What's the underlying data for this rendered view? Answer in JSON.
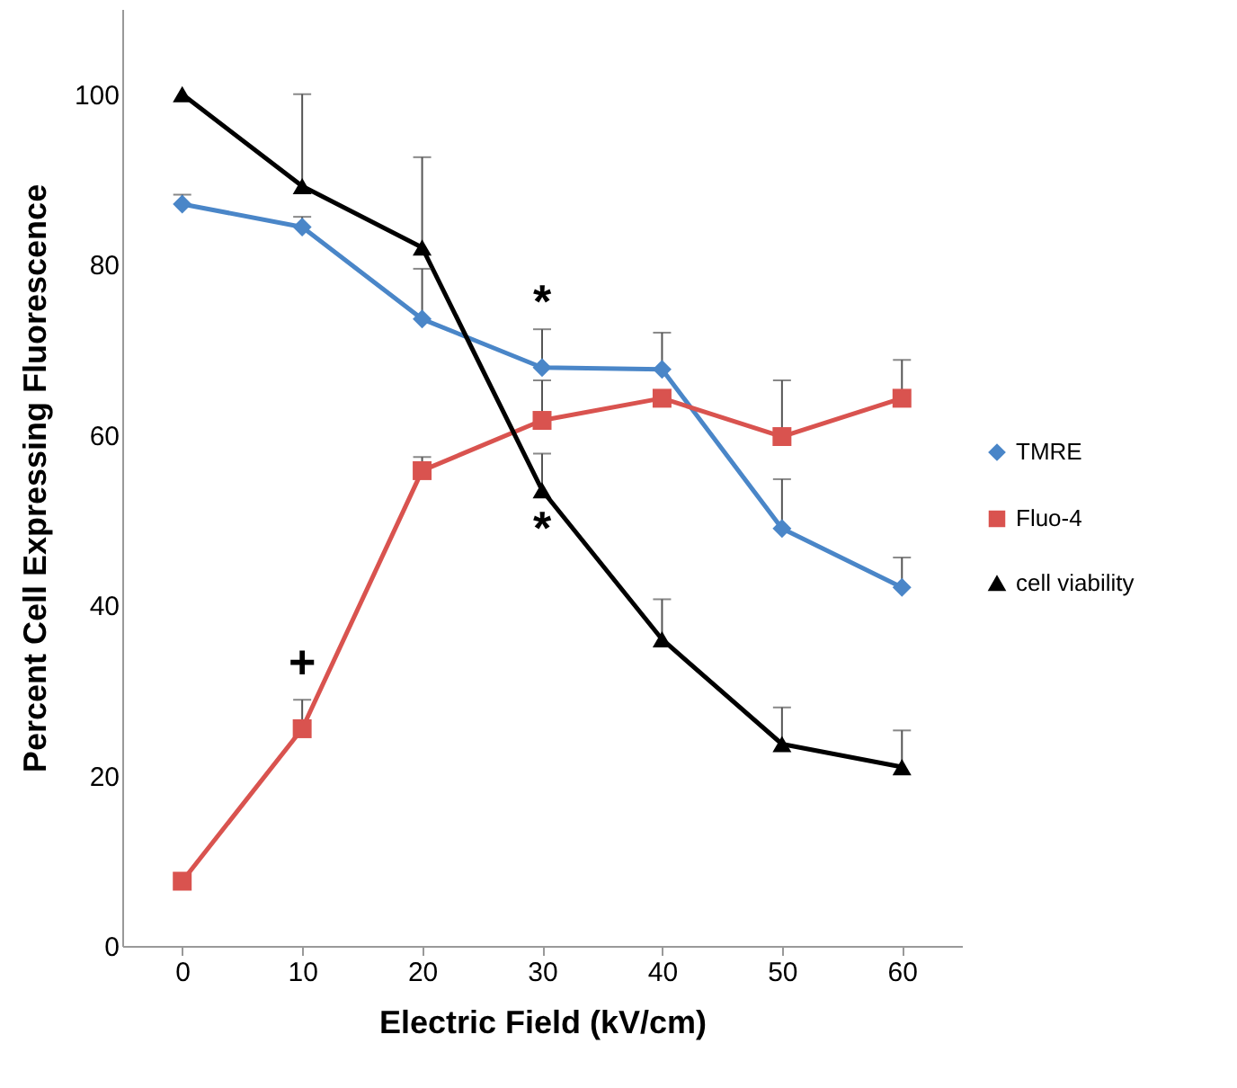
{
  "chart_data": {
    "type": "line",
    "xlabel": "Electric Field (kV/cm)",
    "ylabel": "Percent  Cell Expressing Fluorescence",
    "categories": [
      "0",
      "10",
      "20",
      "30",
      "40",
      "50",
      "60"
    ],
    "series": [
      {
        "name": "TMRE",
        "color": "#4a86c8",
        "marker": "diamond",
        "values": [
          87.1,
          84.4,
          73.6,
          67.9,
          67.7,
          49,
          42.1
        ],
        "errors": [
          [
            87.1,
            88.2
          ],
          [
            84.4,
            85.6
          ],
          [
            73.6,
            79.5
          ],
          [
            67.9,
            72.4
          ],
          [
            67.7,
            72
          ],
          [
            49,
            54.8
          ],
          [
            42.1,
            45.6
          ]
        ]
      },
      {
        "name": "Fluo-4",
        "color": "#d9534f",
        "marker": "square",
        "values": [
          7.6,
          25.5,
          55.8,
          61.7,
          64.3,
          59.8,
          64.3
        ],
        "errors": [
          null,
          [
            25.5,
            28.9
          ],
          [
            55.8,
            57.4
          ],
          [
            61.7,
            66.4
          ],
          null,
          [
            59.8,
            66.4
          ],
          [
            64.3,
            68.8
          ]
        ]
      },
      {
        "name": "cell viability",
        "color": "#000000",
        "marker": "triangle",
        "values": [
          100,
          89.2,
          82,
          53.5,
          36,
          23.7,
          21
        ],
        "errors": [
          null,
          [
            89.2,
            100
          ],
          [
            82,
            92.6
          ],
          [
            53.5,
            57.8
          ],
          [
            36,
            40.7
          ],
          [
            23.7,
            28
          ],
          [
            21,
            25.3
          ]
        ]
      }
    ],
    "annotations": [
      {
        "text": "*",
        "x": "30",
        "y": 67.9
      },
      {
        "text": "*",
        "x": "30",
        "y": 53.5
      },
      {
        "text": "+",
        "x": "10",
        "y": 25.5
      }
    ],
    "ylim": [
      0,
      110
    ],
    "yticks": [
      0,
      20,
      40,
      60,
      80,
      100
    ],
    "grid": false,
    "legend": "right"
  }
}
